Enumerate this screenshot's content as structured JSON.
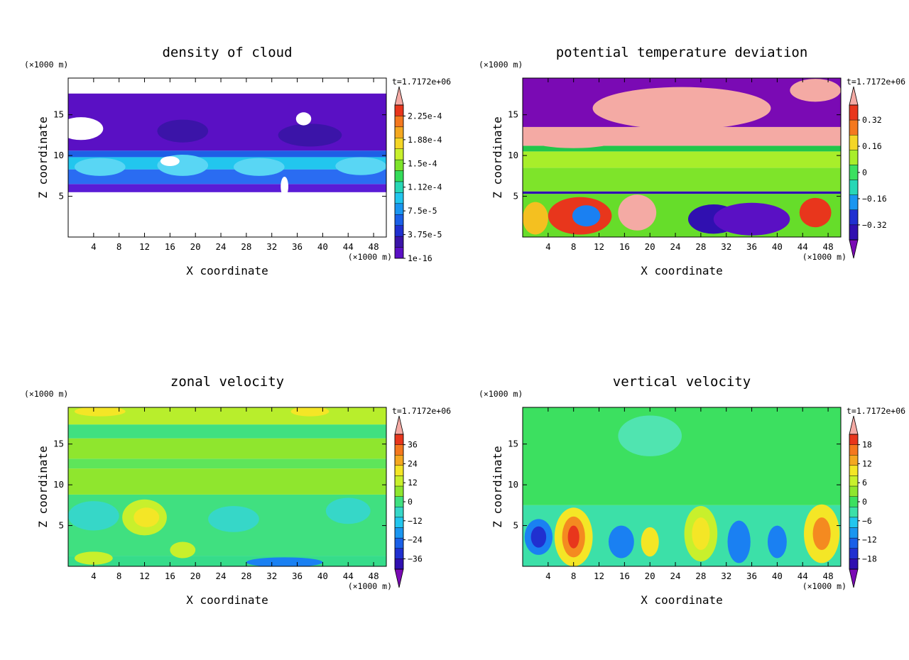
{
  "chart_data": [
    {
      "type": "heatmap",
      "title": "density of cloud",
      "xlabel": "X coordinate",
      "ylabel": "Z coordinate",
      "x_unit": "(×1000 m)",
      "y_unit": "(×1000 m)",
      "time_label": "t=1.7172e+06",
      "xlim": [
        0,
        50
      ],
      "ylim": [
        0,
        19.5
      ],
      "x_ticks": [
        4,
        8,
        12,
        16,
        20,
        24,
        28,
        32,
        36,
        40,
        44,
        48
      ],
      "y_ticks": [
        5,
        10,
        15
      ],
      "colorbar_labels": [
        "2.25e-4",
        "1.88e-4",
        "1.5e-4",
        "1.12e-4",
        "7.5e-5",
        "3.75e-5",
        "1e-16"
      ],
      "colorbar_arrows": "top",
      "bands": [
        {
          "z": [
            5.5,
            6.5
          ],
          "color": "#5a1bd6"
        },
        {
          "z": [
            6.5,
            8.3
          ],
          "color": "#2a6cf2"
        },
        {
          "z": [
            8.3,
            9.8
          ],
          "color": "#22c6ee"
        },
        {
          "z": [
            9.8,
            10.6
          ],
          "color": "#1e5fe6"
        },
        {
          "z": [
            10.6,
            17.6
          ],
          "color": "#5a10c4"
        }
      ],
      "blobs": [
        {
          "x": 5,
          "z": 8.6,
          "rx": 4,
          "rz": 1.1,
          "color": "#59d6f4"
        },
        {
          "x": 18,
          "z": 8.8,
          "rx": 4,
          "rz": 1.3,
          "color": "#59d6f4"
        },
        {
          "x": 30,
          "z": 8.6,
          "rx": 4,
          "rz": 1.1,
          "color": "#59d6f4"
        },
        {
          "x": 46,
          "z": 8.7,
          "rx": 4,
          "rz": 1.1,
          "color": "#59d6f4"
        },
        {
          "x": 16,
          "z": 9.3,
          "rx": 1.5,
          "rz": 0.6,
          "color": "#ffffff"
        },
        {
          "x": 18,
          "z": 13,
          "rx": 4,
          "rz": 1.4,
          "color": "#3b14a8"
        },
        {
          "x": 38,
          "z": 12.5,
          "rx": 5,
          "rz": 1.4,
          "color": "#3b14a8"
        },
        {
          "x": 2,
          "z": 13.3,
          "rx": 3.5,
          "rz": 1.4,
          "color": "#ffffff"
        },
        {
          "x": 37,
          "z": 14.5,
          "rx": 1.2,
          "rz": 0.8,
          "color": "#ffffff"
        },
        {
          "x": 34,
          "z": 6.2,
          "rx": 0.6,
          "rz": 1.2,
          "color": "#ffffff"
        }
      ]
    },
    {
      "type": "heatmap",
      "title": "potential temperature deviation",
      "xlabel": "X coordinate",
      "ylabel": "Z coordinate",
      "x_unit": "(×1000 m)",
      "y_unit": "(×1000 m)",
      "time_label": "t=1.7172e+06",
      "xlim": [
        0,
        50
      ],
      "ylim": [
        0,
        19.5
      ],
      "x_ticks": [
        4,
        8,
        12,
        16,
        20,
        24,
        28,
        32,
        36,
        40,
        44,
        48
      ],
      "y_ticks": [
        5,
        10,
        15
      ],
      "colorbar_labels": [
        "0.32",
        "0.16",
        "0",
        "−0.16",
        "−0.32"
      ],
      "colorbar_arrows": "both",
      "bands": [
        {
          "z": [
            0,
            5.3
          ],
          "color": "#66dd2a"
        },
        {
          "z": [
            5.3,
            5.6
          ],
          "color": "#3010b0"
        },
        {
          "z": [
            5.6,
            8.5
          ],
          "color": "#7ee42a"
        },
        {
          "z": [
            8.5,
            10.5
          ],
          "color": "#a8ee2a"
        },
        {
          "z": [
            10.5,
            11.2
          ],
          "color": "#22c64a"
        },
        {
          "z": [
            11.2,
            13.5
          ],
          "color": "#f4aaa4"
        },
        {
          "z": [
            13.5,
            19.5
          ],
          "color": "#7a0ab4"
        }
      ],
      "blobs": [
        {
          "x": 25,
          "z": 15.8,
          "rx": 14,
          "rz": 2.6,
          "color": "#f4aaa4"
        },
        {
          "x": 46,
          "z": 18,
          "rx": 4,
          "rz": 1.4,
          "color": "#f4aaa4"
        },
        {
          "x": 8,
          "z": 12,
          "rx": 7,
          "rz": 1.1,
          "color": "#f4aaa4"
        },
        {
          "x": 9,
          "z": 2.6,
          "rx": 5,
          "rz": 2.3,
          "color": "#e8361c"
        },
        {
          "x": 10,
          "z": 2.6,
          "rx": 2.2,
          "rz": 1.3,
          "color": "#1a80f2"
        },
        {
          "x": 18,
          "z": 3,
          "rx": 3,
          "rz": 2.2,
          "color": "#f4aaa4"
        },
        {
          "x": 30,
          "z": 2.2,
          "rx": 4,
          "rz": 1.8,
          "color": "#3010b0"
        },
        {
          "x": 36,
          "z": 2.2,
          "rx": 6,
          "rz": 2,
          "color": "#5a10c4"
        },
        {
          "x": 2,
          "z": 2.3,
          "rx": 2,
          "rz": 2,
          "color": "#f4c020"
        },
        {
          "x": 46,
          "z": 3,
          "rx": 2.5,
          "rz": 1.8,
          "color": "#e8361c"
        }
      ]
    },
    {
      "type": "heatmap",
      "title": "zonal velocity",
      "xlabel": "X coordinate",
      "ylabel": "Z coordinate",
      "x_unit": "(×1000 m)",
      "y_unit": "(×1000 m)",
      "time_label": "t=1.7172e+06",
      "xlim": [
        0,
        50
      ],
      "ylim": [
        0,
        19.5
      ],
      "x_ticks": [
        4,
        8,
        12,
        16,
        20,
        24,
        28,
        32,
        36,
        40,
        44,
        48
      ],
      "y_ticks": [
        5,
        10,
        15
      ],
      "colorbar_labels": [
        "36",
        "24",
        "12",
        "0",
        "−12",
        "−24",
        "−36"
      ],
      "colorbar_arrows": "both",
      "bands": [
        {
          "z": [
            0,
            1.3
          ],
          "color": "#36dc8a"
        },
        {
          "z": [
            1.3,
            8.8
          ],
          "color": "#40e080"
        },
        {
          "z": [
            8.8,
            12
          ],
          "color": "#8fe62e"
        },
        {
          "z": [
            12,
            13.2
          ],
          "color": "#5ee55a"
        },
        {
          "z": [
            13.2,
            15.7
          ],
          "color": "#8fe62e"
        },
        {
          "z": [
            15.7,
            17.4
          ],
          "color": "#40e080"
        },
        {
          "z": [
            17.4,
            19.5
          ],
          "color": "#b8ee2c"
        }
      ],
      "blobs": [
        {
          "x": 12,
          "z": 6,
          "rx": 3.5,
          "rz": 2.2,
          "color": "#c8f02c"
        },
        {
          "x": 12.3,
          "z": 6,
          "rx": 2,
          "rz": 1.2,
          "color": "#f4e626"
        },
        {
          "x": 4,
          "z": 6.2,
          "rx": 4,
          "rz": 1.8,
          "color": "#36d7c8"
        },
        {
          "x": 26,
          "z": 5.8,
          "rx": 4,
          "rz": 1.6,
          "color": "#36d7c8"
        },
        {
          "x": 44,
          "z": 6.8,
          "rx": 3.5,
          "rz": 1.6,
          "color": "#36d7c8"
        },
        {
          "x": 18,
          "z": 2,
          "rx": 2,
          "rz": 1,
          "color": "#c8f02c"
        },
        {
          "x": 34,
          "z": 0.5,
          "rx": 6,
          "rz": 0.6,
          "color": "#1a80f2"
        },
        {
          "x": 4,
          "z": 1,
          "rx": 3,
          "rz": 0.8,
          "color": "#c8f02c"
        },
        {
          "x": 5,
          "z": 19,
          "rx": 4,
          "rz": 0.6,
          "color": "#f4e626"
        },
        {
          "x": 38,
          "z": 19,
          "rx": 3,
          "rz": 0.6,
          "color": "#f4e626"
        }
      ]
    },
    {
      "type": "heatmap",
      "title": "vertical velocity",
      "xlabel": "X coordinate",
      "ylabel": "Z coordinate",
      "x_unit": "(×1000 m)",
      "y_unit": "(×1000 m)",
      "time_label": "t=1.7172e+06",
      "xlim": [
        0,
        50
      ],
      "ylim": [
        0,
        19.5
      ],
      "x_ticks": [
        4,
        8,
        12,
        16,
        20,
        24,
        28,
        32,
        36,
        40,
        44,
        48
      ],
      "y_ticks": [
        5,
        10,
        15
      ],
      "colorbar_labels": [
        "18",
        "12",
        "6",
        "0",
        "−6",
        "−12",
        "−18"
      ],
      "colorbar_arrows": "both",
      "bands": [
        {
          "z": [
            0,
            7.5
          ],
          "color": "#3ce0a8"
        },
        {
          "z": [
            7.5,
            19.5
          ],
          "color": "#3ce060"
        }
      ],
      "blobs": [
        {
          "x": 8,
          "z": 3.6,
          "rx": 3,
          "rz": 3.6,
          "color": "#f4e626"
        },
        {
          "x": 8,
          "z": 3.6,
          "rx": 1.8,
          "rz": 2.5,
          "color": "#f48a20"
        },
        {
          "x": 8,
          "z": 3.6,
          "rx": 0.9,
          "rz": 1.4,
          "color": "#e8361c"
        },
        {
          "x": 2.5,
          "z": 3.6,
          "rx": 2.2,
          "rz": 2.2,
          "color": "#1a80f2"
        },
        {
          "x": 2.5,
          "z": 3.6,
          "rx": 1.2,
          "rz": 1.3,
          "color": "#2030d0"
        },
        {
          "x": 15.5,
          "z": 3,
          "rx": 2,
          "rz": 2,
          "color": "#1a80f2"
        },
        {
          "x": 20,
          "z": 3,
          "rx": 1.4,
          "rz": 1.8,
          "color": "#f4e626"
        },
        {
          "x": 28,
          "z": 4,
          "rx": 2.6,
          "rz": 3.4,
          "color": "#c8f02c"
        },
        {
          "x": 28,
          "z": 4,
          "rx": 1.4,
          "rz": 2,
          "color": "#f4e626"
        },
        {
          "x": 34,
          "z": 3,
          "rx": 1.8,
          "rz": 2.6,
          "color": "#1a80f2"
        },
        {
          "x": 47,
          "z": 4,
          "rx": 2.8,
          "rz": 3.6,
          "color": "#f4e626"
        },
        {
          "x": 47,
          "z": 4,
          "rx": 1.4,
          "rz": 2,
          "color": "#f48a20"
        },
        {
          "x": 40,
          "z": 3,
          "rx": 1.5,
          "rz": 2,
          "color": "#1a80f2"
        },
        {
          "x": 20,
          "z": 16,
          "rx": 5,
          "rz": 2.5,
          "color": "#50e4b0"
        }
      ]
    }
  ],
  "colorbars": {
    "cloud": [
      "#f4aaa4",
      "#e8361c",
      "#f4781e",
      "#f4a820",
      "#f4d626",
      "#c8f02c",
      "#7ee42a",
      "#34dc5a",
      "#28d7b6",
      "#22c6ee",
      "#1a96f0",
      "#1a60e8",
      "#2030d0",
      "#3b14a8",
      "#5a10c4"
    ],
    "theta": [
      "#f4aaa4",
      "#e8361c",
      "#f4781e",
      "#f4d626",
      "#a8ee2a",
      "#3ce060",
      "#28d7b6",
      "#1a96f0",
      "#2030d0",
      "#3010b0",
      "#7a0ab4"
    ],
    "u": [
      "#f4aaa4",
      "#e8361c",
      "#f4781e",
      "#f4a820",
      "#f4e626",
      "#c8f02c",
      "#8fe62e",
      "#40e080",
      "#36d7c8",
      "#22c6ee",
      "#1a96f0",
      "#1a60e8",
      "#2030d0",
      "#3010b0",
      "#7a0ab4"
    ],
    "w": [
      "#f4aaa4",
      "#e8361c",
      "#f4781e",
      "#f4a820",
      "#f4e626",
      "#c8f02c",
      "#8fe62e",
      "#3ce060",
      "#3ce0a8",
      "#22c6ee",
      "#1a96f0",
      "#1a60e8",
      "#2030d0",
      "#3010b0",
      "#7a0ab4"
    ]
  }
}
